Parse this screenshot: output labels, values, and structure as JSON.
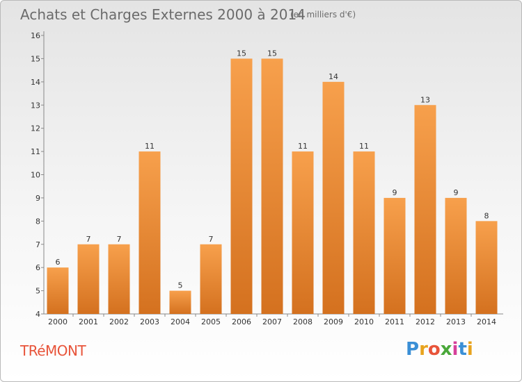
{
  "chart_data": {
    "type": "bar",
    "title": "Achats et Charges Externes 2000 à 2014",
    "subtitle": "(en milliers d'€)",
    "categories": [
      "2000",
      "2001",
      "2002",
      "2003",
      "2004",
      "2005",
      "2006",
      "2007",
      "2008",
      "2009",
      "2010",
      "2011",
      "2012",
      "2013",
      "2014"
    ],
    "values": [
      6,
      7,
      7,
      11,
      5,
      7,
      15,
      15,
      11,
      14,
      11,
      9,
      13,
      9,
      8
    ],
    "data_labels": [
      "6",
      "7",
      "7",
      "11",
      "5",
      "7",
      "15",
      "15",
      "11",
      "14",
      "11",
      "9",
      "13",
      "9",
      "8"
    ],
    "yticks": [
      "4",
      "5",
      "6",
      "7",
      "8",
      "9",
      "10",
      "11",
      "12",
      "13",
      "14",
      "15",
      "16"
    ],
    "ylim": [
      4,
      16
    ],
    "xlabel": "",
    "ylabel": "",
    "grid": false,
    "bar_color_top": "#f7a04c",
    "bar_color_bottom": "#d4711f"
  },
  "footer": {
    "commune": "TRéMONT",
    "logo_letters": [
      "P",
      "r",
      "o",
      "x",
      "i",
      "t",
      "i"
    ],
    "logo_colors": [
      "#3a8fd6",
      "#e8a31e",
      "#e8543a",
      "#4aa83a",
      "#d6409a",
      "#3a8fd6",
      "#e8a31e"
    ]
  }
}
